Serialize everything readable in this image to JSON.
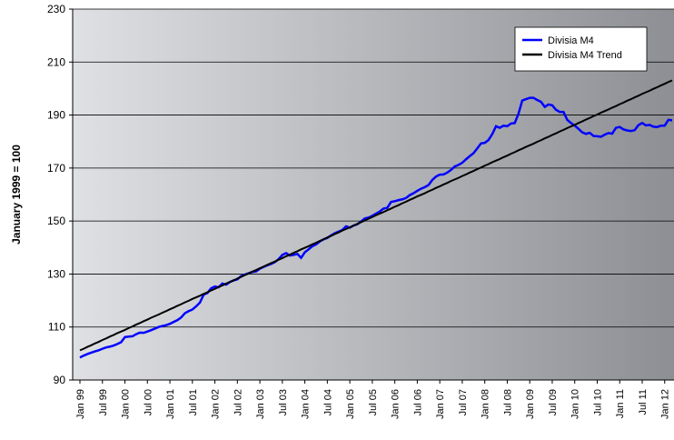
{
  "chart_data": {
    "type": "line",
    "y_label": "January 1999 = 100",
    "categories": [
      "Jan 99",
      null,
      null,
      null,
      null,
      null,
      "Jul 99",
      null,
      null,
      null,
      null,
      null,
      "Jan 00",
      null,
      null,
      null,
      null,
      null,
      "Jul 00",
      null,
      null,
      null,
      null,
      null,
      "Jan 01",
      null,
      null,
      null,
      null,
      null,
      "Jul 01",
      null,
      null,
      null,
      null,
      null,
      "Jan 02",
      null,
      null,
      null,
      null,
      null,
      "Jul 02",
      null,
      null,
      null,
      null,
      null,
      "Jan 03",
      null,
      null,
      null,
      null,
      null,
      "Jul 03",
      null,
      null,
      null,
      null,
      null,
      "Jan 04",
      null,
      null,
      null,
      null,
      null,
      "Jul 04",
      null,
      null,
      null,
      null,
      null,
      "Jan 05",
      null,
      null,
      null,
      null,
      null,
      "Jul 05",
      null,
      null,
      null,
      null,
      null,
      "Jan 06",
      null,
      null,
      null,
      null,
      null,
      "Jul 06",
      null,
      null,
      null,
      null,
      null,
      "Jan 07",
      null,
      null,
      null,
      null,
      null,
      "Jul 07",
      null,
      null,
      null,
      null,
      null,
      "Jan 08",
      null,
      null,
      null,
      null,
      null,
      "Jul 08",
      null,
      null,
      null,
      null,
      null,
      "Jan 09",
      null,
      null,
      null,
      null,
      null,
      "Jul 09",
      null,
      null,
      null,
      null,
      null,
      "Jan 10",
      null,
      null,
      null,
      null,
      null,
      "Jul 10",
      null,
      null,
      null,
      null,
      null,
      "Jan 11",
      null,
      null,
      null,
      null,
      null,
      "Jul 11",
      null,
      null,
      null,
      null,
      null,
      "Jan 12",
      null,
      null
    ],
    "series": [
      {
        "name": "Divisia M4",
        "color": "#0000ff",
        "values": [
          98.5,
          99.2,
          99.8,
          100.3,
          100.8,
          101.2,
          101.8,
          102.3,
          102.6,
          103.0,
          103.6,
          104.3,
          106.2,
          106.4,
          106.5,
          107.3,
          107.9,
          107.8,
          108.3,
          108.8,
          109.4,
          110.0,
          110.4,
          110.7,
          111.2,
          111.9,
          112.6,
          113.6,
          115.2,
          116.0,
          116.6,
          117.8,
          119.2,
          122.2,
          122.8,
          124.6,
          125.3,
          125.0,
          126.4,
          126.0,
          127.0,
          127.6,
          128.0,
          129.2,
          129.8,
          130.3,
          130.8,
          131.0,
          132.0,
          132.7,
          133.3,
          133.8,
          134.5,
          135.6,
          137.2,
          137.9,
          137.0,
          137.2,
          137.6,
          136.1,
          138.2,
          139.3,
          140.5,
          141.2,
          142.3,
          143.1,
          143.6,
          144.6,
          145.4,
          146.0,
          146.6,
          148.0,
          147.5,
          148.3,
          148.8,
          149.8,
          151.0,
          151.3,
          152.0,
          152.8,
          153.6,
          154.7,
          155.0,
          157.2,
          157.5,
          157.9,
          158.2,
          158.7,
          159.8,
          160.5,
          161.4,
          162.2,
          162.8,
          163.6,
          165.5,
          166.8,
          167.5,
          167.6,
          168.3,
          169.3,
          170.6,
          171.2,
          172.0,
          173.3,
          174.5,
          175.6,
          177.4,
          179.3,
          179.5,
          180.6,
          182.8,
          185.8,
          185.2,
          186.0,
          185.8,
          186.8,
          187.0,
          190.5,
          195.5,
          196.0,
          196.5,
          196.5,
          195.7,
          195.0,
          193.1,
          194.0,
          193.7,
          192.0,
          191.2,
          191.2,
          188.2,
          187.0,
          186.0,
          184.8,
          183.5,
          182.9,
          183.3,
          182.1,
          182.0,
          181.8,
          182.6,
          183.2,
          183.0,
          185.2,
          185.5,
          184.6,
          184.2,
          184.0,
          184.3,
          186.2,
          187.0,
          186.1,
          186.3,
          185.6,
          185.5,
          186.0,
          186.0,
          188.2,
          188.0
        ]
      },
      {
        "name": "Divisia M4 Trend",
        "color": "#000000",
        "values": [
          101.2,
          101.8,
          102.5,
          103.1,
          103.8,
          104.4,
          105.1,
          105.7,
          106.4,
          107.0,
          107.7,
          108.3,
          108.9,
          109.6,
          110.2,
          110.9,
          111.5,
          112.2,
          112.8,
          113.5,
          114.1,
          114.7,
          115.4,
          116.0,
          116.7,
          117.3,
          118.0,
          118.6,
          119.3,
          119.9,
          120.6,
          121.2,
          121.8,
          122.5,
          123.1,
          123.8,
          124.4,
          125.1,
          125.7,
          126.4,
          127.0,
          127.6,
          128.3,
          128.9,
          129.6,
          130.2,
          130.9,
          131.5,
          132.2,
          132.8,
          133.5,
          134.1,
          134.7,
          135.4,
          136.0,
          136.7,
          137.3,
          138.0,
          138.6,
          139.3,
          139.9,
          140.5,
          141.2,
          141.8,
          142.5,
          143.1,
          143.8,
          144.4,
          145.1,
          145.7,
          146.4,
          147.0,
          147.6,
          148.3,
          148.9,
          149.6,
          150.2,
          150.9,
          151.5,
          152.2,
          152.8,
          153.4,
          154.1,
          154.7,
          155.4,
          156.0,
          156.7,
          157.3,
          158.0,
          158.6,
          159.3,
          159.9,
          160.5,
          161.2,
          161.8,
          162.5,
          163.1,
          163.8,
          164.4,
          165.1,
          165.7,
          166.3,
          167.0,
          167.6,
          168.3,
          168.9,
          169.6,
          170.2,
          170.9,
          171.5,
          172.2,
          172.8,
          173.4,
          174.1,
          174.7,
          175.4,
          176.0,
          176.7,
          177.3,
          178.0,
          178.6,
          179.2,
          179.9,
          180.5,
          181.2,
          181.8,
          182.5,
          183.1,
          183.8,
          184.4,
          185.1,
          185.7,
          186.3,
          187.0,
          187.6,
          188.3,
          188.9,
          189.6,
          190.2,
          190.9,
          191.5,
          192.1,
          192.8,
          193.4,
          194.1,
          194.7,
          195.4,
          196.0,
          196.7,
          197.3,
          198.0,
          198.6,
          199.2,
          199.9,
          200.5,
          201.2,
          201.8,
          202.5,
          203.1
        ]
      }
    ],
    "ylim": [
      90,
      230
    ],
    "yticks": [
      90,
      110,
      130,
      150,
      170,
      190,
      210,
      230
    ],
    "grid": true,
    "legend": "upper right"
  }
}
